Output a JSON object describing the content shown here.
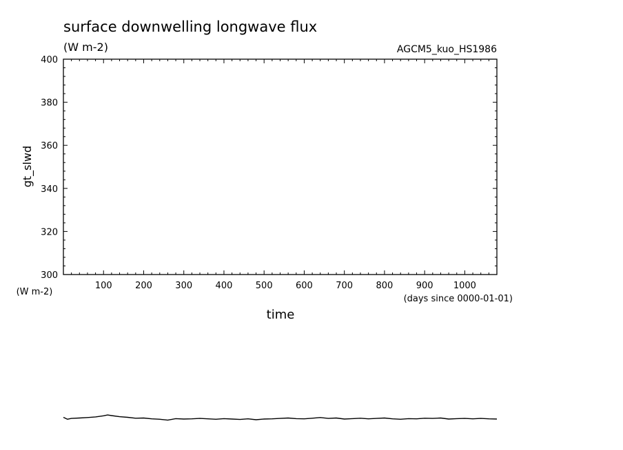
{
  "chart_data": {
    "type": "line",
    "title": "surface downwelling longwave flux",
    "title_units": "(W m-2)",
    "run_label": "AGCM5_kuo_HS1986",
    "xlabel": "time",
    "x_units": "(days since 0000-01-01)",
    "ylabel": "gt_slwd",
    "y_units": "(W m-2)",
    "xlim": [
      0,
      1080
    ],
    "ylim": [
      300,
      400
    ],
    "x_ticks": [
      100,
      200,
      300,
      400,
      500,
      600,
      700,
      800,
      900,
      1000
    ],
    "y_ticks": [
      300,
      320,
      340,
      360,
      380,
      400
    ],
    "grid": false,
    "series": [
      {
        "color": "#000000",
        "x": [
          0,
          10,
          20,
          40,
          60,
          80,
          100,
          110,
          120,
          140,
          160,
          180,
          200,
          220,
          240,
          260,
          280,
          300,
          320,
          340,
          360,
          380,
          400,
          420,
          440,
          460,
          480,
          500,
          520,
          540,
          560,
          580,
          600,
          620,
          640,
          660,
          680,
          700,
          720,
          740,
          760,
          780,
          800,
          820,
          840,
          860,
          880,
          900,
          920,
          940,
          960,
          980,
          1000,
          1020,
          1040,
          1060,
          1080
        ],
        "y": [
          233.7,
          232.8,
          233.2,
          233.4,
          233.6,
          233.9,
          234.4,
          234.8,
          234.5,
          234.0,
          233.7,
          233.3,
          233.4,
          233.0,
          232.8,
          232.4,
          233.1,
          232.9,
          233.0,
          233.2,
          233.0,
          232.8,
          233.1,
          232.9,
          232.7,
          233.0,
          232.6,
          232.9,
          233.0,
          233.2,
          233.4,
          233.1,
          233.0,
          233.3,
          233.6,
          233.2,
          233.4,
          232.9,
          233.1,
          233.3,
          233.0,
          233.2,
          233.4,
          233.0,
          232.8,
          233.1,
          233.0,
          233.3,
          233.2,
          233.4,
          232.9,
          233.1,
          233.2,
          233.0,
          233.2,
          233.0,
          232.9
        ]
      }
    ]
  }
}
